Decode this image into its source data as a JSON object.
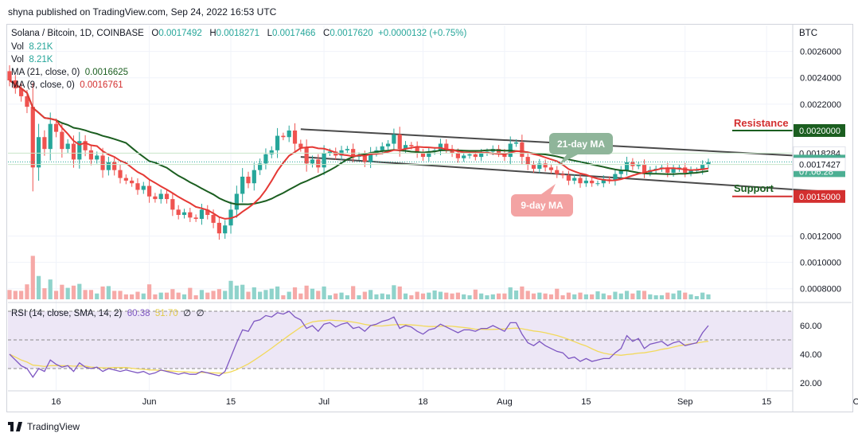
{
  "publisher_line": "shyna published on TradingView.com, Sep 24, 2022 16:53 UTC",
  "legend": {
    "symbol": "Solana / Bitcoin, 1D, COINBASE",
    "o_label": "O",
    "o_value": "0.0017492",
    "h_label": "H",
    "h_value": "0.0018271",
    "l_label": "L",
    "l_value": "0.0017466",
    "c_label": "C",
    "c_value": "0.0017620",
    "change": "+0.0000132 (+0.75%)",
    "vol1_label": "Vol",
    "vol1_value": "8.21K",
    "vol2_label": "Vol",
    "vol2_value": "8.21K",
    "ma21_label": "MA (21, close, 0)",
    "ma21_value": "0.0016625",
    "ma9_label": "MA (9, close, 0)",
    "ma9_value": "0.0016761"
  },
  "currency": "BTC",
  "rsi_legend": {
    "label": "RSI (14, close, SMA, 14, 2)",
    "rsi": "60.38",
    "sma": "51.70",
    "e1": "∅",
    "e2": "∅"
  },
  "brand": "TradingView",
  "colors": {
    "up": "#26a69a",
    "down": "#ef5350",
    "ma21": "#1b5e20",
    "ma9": "#e53935",
    "rsi": "#7e57c2",
    "rsi_sma": "#f2d95b",
    "resistance": "#1b5e20",
    "support": "#d32f2f"
  },
  "chart_data": [
    {
      "type": "candlestick",
      "title": "Solana / Bitcoin, 1D, COINBASE",
      "y_axis_ticks": [
        "0.0026000",
        "0.0024000",
        "0.0022000",
        "0.0020000",
        "0.0018284",
        "0.0017620",
        "0.0017427",
        "0.0015000",
        "0.0012000",
        "0.0010000",
        "0.0008000"
      ],
      "x_axis_ticks": [
        "16",
        "Jun",
        "15",
        "Jul",
        "18",
        "Aug",
        "15",
        "Sep",
        "15",
        "Oct"
      ],
      "ylim": [
        0.00072,
        0.0027
      ],
      "price_labels": [
        {
          "value": "0.0020000",
          "kind": "resistance"
        },
        {
          "value": "0.0018284",
          "kind": "level"
        },
        {
          "value": "0.0017620",
          "kind": "last",
          "countdown": "07:06:28"
        },
        {
          "value": "0.0017427",
          "kind": "level"
        },
        {
          "value": "0.0015000",
          "kind": "support"
        }
      ],
      "annotations": [
        {
          "text": "Resistance",
          "value": 0.002
        },
        {
          "text": "Support",
          "value": 0.0015
        },
        {
          "text": "21-day MA"
        },
        {
          "text": "9-day MA"
        }
      ],
      "channel": [
        {
          "line": "upper",
          "from": [
            "2022-06-27",
            0.00201
          ],
          "to": [
            "2022-09-24",
            0.0018
          ]
        },
        {
          "line": "lower",
          "from": [
            "2022-06-27",
            0.0018
          ],
          "to": [
            "2022-09-24",
            0.00154
          ]
        }
      ],
      "closes_daily_from_2022-05-08": [
        0.00238,
        0.00232,
        0.00226,
        0.00218,
        0.00172,
        0.00195,
        0.00186,
        0.00205,
        0.00199,
        0.00186,
        0.0019,
        0.00178,
        0.00192,
        0.00185,
        0.00178,
        0.00181,
        0.0017,
        0.00176,
        0.0017,
        0.00164,
        0.00162,
        0.0016,
        0.00155,
        0.00158,
        0.0015,
        0.00148,
        0.00152,
        0.00148,
        0.0014,
        0.00136,
        0.00138,
        0.00134,
        0.00133,
        0.0014,
        0.00136,
        0.0013,
        0.00122,
        0.00128,
        0.0014,
        0.00152,
        0.00165,
        0.0016,
        0.0017,
        0.00175,
        0.00182,
        0.00185,
        0.00196,
        0.00195,
        0.002,
        0.0019,
        0.00187,
        0.00175,
        0.00178,
        0.00172,
        0.00183,
        0.00184,
        0.00181,
        0.00185,
        0.00186,
        0.0018,
        0.00181,
        0.00176,
        0.00183,
        0.00185,
        0.00188,
        0.0019,
        0.00197,
        0.00186,
        0.00189,
        0.00188,
        0.00183,
        0.0018,
        0.00184,
        0.00185,
        0.0019,
        0.00186,
        0.00183,
        0.00179,
        0.00181,
        0.00182,
        0.0018,
        0.00183,
        0.00184,
        0.00186,
        0.00183,
        0.0018,
        0.0019,
        0.00191,
        0.0018,
        0.00174,
        0.00171,
        0.00175,
        0.00172,
        0.0017,
        0.00167,
        0.00166,
        0.00162,
        0.00164,
        0.0016,
        0.00162,
        0.0016,
        0.0016,
        0.00163,
        0.00162,
        0.00167,
        0.0017,
        0.00176,
        0.00173,
        0.00174,
        0.00168,
        0.0017,
        0.00171,
        0.00172,
        0.00168,
        0.00171,
        0.00172,
        0.00168,
        0.0017,
        0.0017,
        0.00174,
        0.00176
      ]
    },
    {
      "type": "volume",
      "series": [
        {
          "name": "Vol",
          "last": "8.21K"
        }
      ]
    },
    {
      "type": "line",
      "title": "RSI (14, close, SMA, 14, 2)",
      "y_axis_ticks": [
        "60.00",
        "40.00",
        "20.00"
      ],
      "bands": [
        30,
        70
      ],
      "ylim": [
        15,
        75
      ],
      "series": [
        {
          "name": "RSI",
          "last": 60.38,
          "values": [
            40,
            36,
            32,
            30,
            24,
            30,
            28,
            36,
            33,
            31,
            32,
            28,
            34,
            31,
            30,
            31,
            28,
            30,
            29,
            28,
            29,
            28,
            27,
            28,
            26,
            27,
            29,
            28,
            27,
            26,
            27,
            26,
            26,
            28,
            27,
            26,
            25,
            28,
            38,
            48,
            57,
            56,
            63,
            64,
            67,
            66,
            69,
            68,
            70,
            66,
            64,
            58,
            60,
            56,
            61,
            62,
            59,
            61,
            62,
            58,
            59,
            56,
            60,
            61,
            63,
            64,
            66,
            58,
            60,
            59,
            56,
            54,
            57,
            58,
            61,
            59,
            57,
            55,
            57,
            57,
            56,
            58,
            58,
            60,
            58,
            56,
            62,
            62,
            54,
            48,
            46,
            49,
            46,
            44,
            42,
            41,
            37,
            38,
            35,
            37,
            35,
            36,
            37,
            37,
            41,
            44,
            53,
            49,
            51,
            44,
            47,
            48,
            49,
            46,
            48,
            49,
            46,
            47,
            48,
            55,
            60
          ]
        },
        {
          "name": "SMA",
          "last": 51.7
        }
      ]
    }
  ]
}
